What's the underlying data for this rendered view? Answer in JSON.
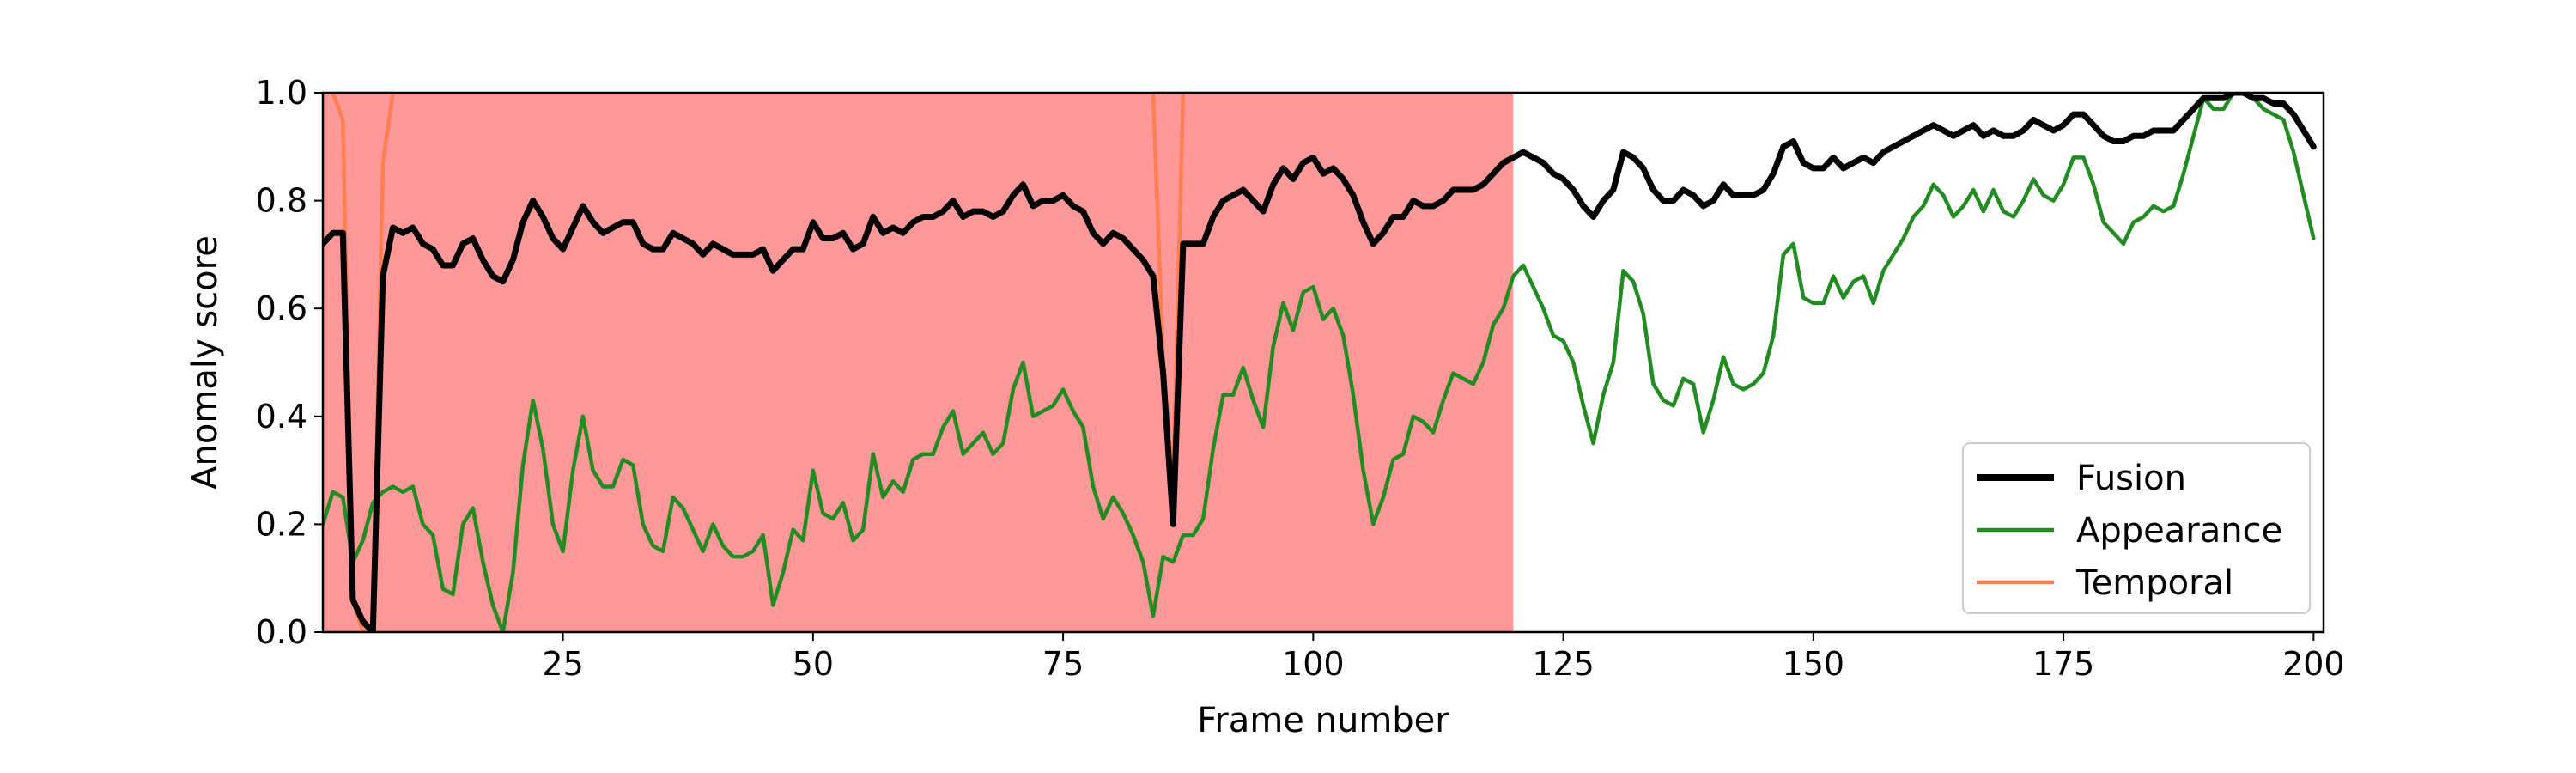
{
  "chart_data": {
    "type": "line",
    "xlabel": "Frame number",
    "ylabel": "Anomaly score",
    "xlim": [
      1,
      201
    ],
    "ylim": [
      0.0,
      1.0
    ],
    "x_ticks": [
      25,
      50,
      75,
      100,
      125,
      150,
      175,
      200
    ],
    "y_ticks": [
      0.0,
      0.2,
      0.4,
      0.6,
      0.8,
      1.0
    ],
    "x_tick_labels": [
      "25",
      "50",
      "75",
      "100",
      "125",
      "150",
      "175",
      "200"
    ],
    "y_tick_labels": [
      "0.0",
      "0.2",
      "0.4",
      "0.6",
      "0.8",
      "1.0"
    ],
    "grid": false,
    "legend_position": "bottom-right",
    "shaded_regions": [
      {
        "x_start": 1,
        "x_end": 120,
        "color": "#ff9999"
      }
    ],
    "series": [
      {
        "name": "Temporal",
        "color": "#ff7f50",
        "x": [
          2,
          3,
          4,
          5,
          6,
          7,
          8,
          84,
          85,
          86,
          87
        ],
        "values": [
          1.0,
          0.95,
          0.06,
          0.0,
          0.0,
          0.87,
          1.0,
          1.0,
          0.5,
          0.28,
          1.0
        ]
      },
      {
        "name": "Appearance",
        "color": "#228b22",
        "x": [
          1,
          2,
          3,
          4,
          5,
          6,
          7,
          8,
          9,
          10,
          11,
          12,
          13,
          14,
          15,
          16,
          17,
          18,
          19,
          20,
          21,
          22,
          23,
          24,
          25,
          26,
          27,
          28,
          29,
          30,
          31,
          32,
          33,
          34,
          35,
          36,
          37,
          38,
          39,
          40,
          41,
          42,
          43,
          44,
          45,
          46,
          47,
          48,
          49,
          50,
          51,
          52,
          53,
          54,
          55,
          56,
          57,
          58,
          59,
          60,
          61,
          62,
          63,
          64,
          65,
          66,
          67,
          68,
          69,
          70,
          71,
          72,
          73,
          74,
          75,
          76,
          77,
          78,
          79,
          80,
          81,
          82,
          83,
          84,
          85,
          86,
          87,
          88,
          89,
          90,
          91,
          92,
          93,
          94,
          95,
          96,
          97,
          98,
          99,
          100,
          101,
          102,
          103,
          104,
          105,
          106,
          107,
          108,
          109,
          110,
          111,
          112,
          113,
          114,
          115,
          116,
          117,
          118,
          119,
          120,
          121,
          122,
          123,
          124,
          125,
          126,
          127,
          128,
          129,
          130,
          131,
          132,
          133,
          134,
          135,
          136,
          137,
          138,
          139,
          140,
          141,
          142,
          143,
          144,
          145,
          146,
          147,
          148,
          149,
          150,
          151,
          152,
          153,
          154,
          155,
          156,
          157,
          158,
          159,
          160,
          161,
          162,
          163,
          164,
          165,
          166,
          167,
          168,
          169,
          170,
          171,
          172,
          173,
          174,
          175,
          176,
          177,
          178,
          179,
          180,
          181,
          182,
          183,
          184,
          185,
          186,
          187,
          188,
          189,
          190,
          191,
          192,
          193,
          194,
          195,
          196,
          197,
          198,
          199,
          200
        ],
        "values": [
          0.2,
          0.26,
          0.25,
          0.13,
          0.17,
          0.24,
          0.26,
          0.27,
          0.26,
          0.27,
          0.2,
          0.18,
          0.08,
          0.07,
          0.2,
          0.23,
          0.13,
          0.05,
          0.0,
          0.11,
          0.31,
          0.43,
          0.34,
          0.2,
          0.15,
          0.3,
          0.4,
          0.3,
          0.27,
          0.27,
          0.32,
          0.31,
          0.2,
          0.16,
          0.15,
          0.25,
          0.23,
          0.19,
          0.15,
          0.2,
          0.16,
          0.14,
          0.14,
          0.15,
          0.18,
          0.05,
          0.11,
          0.19,
          0.17,
          0.3,
          0.22,
          0.21,
          0.24,
          0.17,
          0.19,
          0.33,
          0.25,
          0.28,
          0.26,
          0.32,
          0.33,
          0.33,
          0.38,
          0.41,
          0.33,
          0.35,
          0.37,
          0.33,
          0.35,
          0.45,
          0.5,
          0.4,
          0.41,
          0.42,
          0.45,
          0.41,
          0.38,
          0.27,
          0.21,
          0.25,
          0.22,
          0.18,
          0.13,
          0.03,
          0.14,
          0.13,
          0.18,
          0.18,
          0.21,
          0.34,
          0.44,
          0.44,
          0.49,
          0.43,
          0.38,
          0.53,
          0.61,
          0.56,
          0.63,
          0.64,
          0.58,
          0.6,
          0.55,
          0.44,
          0.3,
          0.2,
          0.25,
          0.32,
          0.33,
          0.4,
          0.39,
          0.37,
          0.43,
          0.48,
          0.47,
          0.46,
          0.5,
          0.57,
          0.6,
          0.66,
          0.68,
          0.64,
          0.6,
          0.55,
          0.54,
          0.5,
          0.42,
          0.35,
          0.44,
          0.5,
          0.67,
          0.65,
          0.59,
          0.46,
          0.43,
          0.42,
          0.47,
          0.46,
          0.37,
          0.43,
          0.51,
          0.46,
          0.45,
          0.46,
          0.48,
          0.55,
          0.7,
          0.72,
          0.62,
          0.61,
          0.61,
          0.66,
          0.62,
          0.65,
          0.66,
          0.61,
          0.67,
          0.7,
          0.73,
          0.77,
          0.79,
          0.83,
          0.81,
          0.77,
          0.79,
          0.82,
          0.78,
          0.82,
          0.78,
          0.77,
          0.8,
          0.84,
          0.81,
          0.8,
          0.83,
          0.88,
          0.88,
          0.83,
          0.76,
          0.74,
          0.72,
          0.76,
          0.77,
          0.79,
          0.78,
          0.79,
          0.85,
          0.92,
          0.99,
          0.97,
          0.97,
          1.0,
          1.0,
          0.99,
          0.97,
          0.96,
          0.95,
          0.89,
          0.81,
          0.73
        ]
      },
      {
        "name": "Fusion",
        "color": "#000000",
        "x": [
          1,
          2,
          3,
          4,
          5,
          6,
          7,
          8,
          9,
          10,
          11,
          12,
          13,
          14,
          15,
          16,
          17,
          18,
          19,
          20,
          21,
          22,
          23,
          24,
          25,
          26,
          27,
          28,
          29,
          30,
          31,
          32,
          33,
          34,
          35,
          36,
          37,
          38,
          39,
          40,
          41,
          42,
          43,
          44,
          45,
          46,
          47,
          48,
          49,
          50,
          51,
          52,
          53,
          54,
          55,
          56,
          57,
          58,
          59,
          60,
          61,
          62,
          63,
          64,
          65,
          66,
          67,
          68,
          69,
          70,
          71,
          72,
          73,
          74,
          75,
          76,
          77,
          78,
          79,
          80,
          81,
          82,
          83,
          84,
          85,
          86,
          87,
          88,
          89,
          90,
          91,
          92,
          93,
          94,
          95,
          96,
          97,
          98,
          99,
          100,
          101,
          102,
          103,
          104,
          105,
          106,
          107,
          108,
          109,
          110,
          111,
          112,
          113,
          114,
          115,
          116,
          117,
          118,
          119,
          120,
          121,
          122,
          123,
          124,
          125,
          126,
          127,
          128,
          129,
          130,
          131,
          132,
          133,
          134,
          135,
          136,
          137,
          138,
          139,
          140,
          141,
          142,
          143,
          144,
          145,
          146,
          147,
          148,
          149,
          150,
          151,
          152,
          153,
          154,
          155,
          156,
          157,
          158,
          159,
          160,
          161,
          162,
          163,
          164,
          165,
          166,
          167,
          168,
          169,
          170,
          171,
          172,
          173,
          174,
          175,
          176,
          177,
          178,
          179,
          180,
          181,
          182,
          183,
          184,
          185,
          186,
          187,
          188,
          189,
          190,
          191,
          192,
          193,
          194,
          195,
          196,
          197,
          198,
          199,
          200
        ],
        "values": [
          0.72,
          0.74,
          0.74,
          0.06,
          0.02,
          0.0,
          0.66,
          0.75,
          0.74,
          0.75,
          0.72,
          0.71,
          0.68,
          0.68,
          0.72,
          0.73,
          0.69,
          0.66,
          0.65,
          0.69,
          0.76,
          0.8,
          0.77,
          0.73,
          0.71,
          0.75,
          0.79,
          0.76,
          0.74,
          0.75,
          0.76,
          0.76,
          0.72,
          0.71,
          0.71,
          0.74,
          0.73,
          0.72,
          0.7,
          0.72,
          0.71,
          0.7,
          0.7,
          0.7,
          0.71,
          0.67,
          0.69,
          0.71,
          0.71,
          0.76,
          0.73,
          0.73,
          0.74,
          0.71,
          0.72,
          0.77,
          0.74,
          0.75,
          0.74,
          0.76,
          0.77,
          0.77,
          0.78,
          0.8,
          0.77,
          0.78,
          0.78,
          0.77,
          0.78,
          0.81,
          0.83,
          0.79,
          0.8,
          0.8,
          0.81,
          0.79,
          0.78,
          0.74,
          0.72,
          0.74,
          0.73,
          0.71,
          0.69,
          0.66,
          0.48,
          0.2,
          0.72,
          0.72,
          0.72,
          0.77,
          0.8,
          0.81,
          0.82,
          0.8,
          0.78,
          0.83,
          0.86,
          0.84,
          0.87,
          0.88,
          0.85,
          0.86,
          0.84,
          0.81,
          0.76,
          0.72,
          0.74,
          0.77,
          0.77,
          0.8,
          0.79,
          0.79,
          0.8,
          0.82,
          0.82,
          0.82,
          0.83,
          0.85,
          0.87,
          0.88,
          0.89,
          0.88,
          0.87,
          0.85,
          0.84,
          0.82,
          0.79,
          0.77,
          0.8,
          0.82,
          0.89,
          0.88,
          0.86,
          0.82,
          0.8,
          0.8,
          0.82,
          0.81,
          0.79,
          0.8,
          0.83,
          0.81,
          0.81,
          0.81,
          0.82,
          0.85,
          0.9,
          0.91,
          0.87,
          0.86,
          0.86,
          0.88,
          0.86,
          0.87,
          0.88,
          0.87,
          0.89,
          0.9,
          0.91,
          0.92,
          0.93,
          0.94,
          0.93,
          0.92,
          0.93,
          0.94,
          0.92,
          0.93,
          0.92,
          0.92,
          0.93,
          0.95,
          0.94,
          0.93,
          0.94,
          0.96,
          0.96,
          0.94,
          0.92,
          0.91,
          0.91,
          0.92,
          0.92,
          0.93,
          0.93,
          0.93,
          0.95,
          0.97,
          0.99,
          0.99,
          0.99,
          1.0,
          1.0,
          0.99,
          0.99,
          0.98,
          0.98,
          0.96,
          0.93,
          0.9
        ]
      }
    ],
    "legend": [
      {
        "label": "Fusion",
        "color": "#000000",
        "width": 8
      },
      {
        "label": "Appearance",
        "color": "#228b22",
        "width": 4.5
      },
      {
        "label": "Temporal",
        "color": "#ff7f50",
        "width": 4.5
      }
    ]
  }
}
